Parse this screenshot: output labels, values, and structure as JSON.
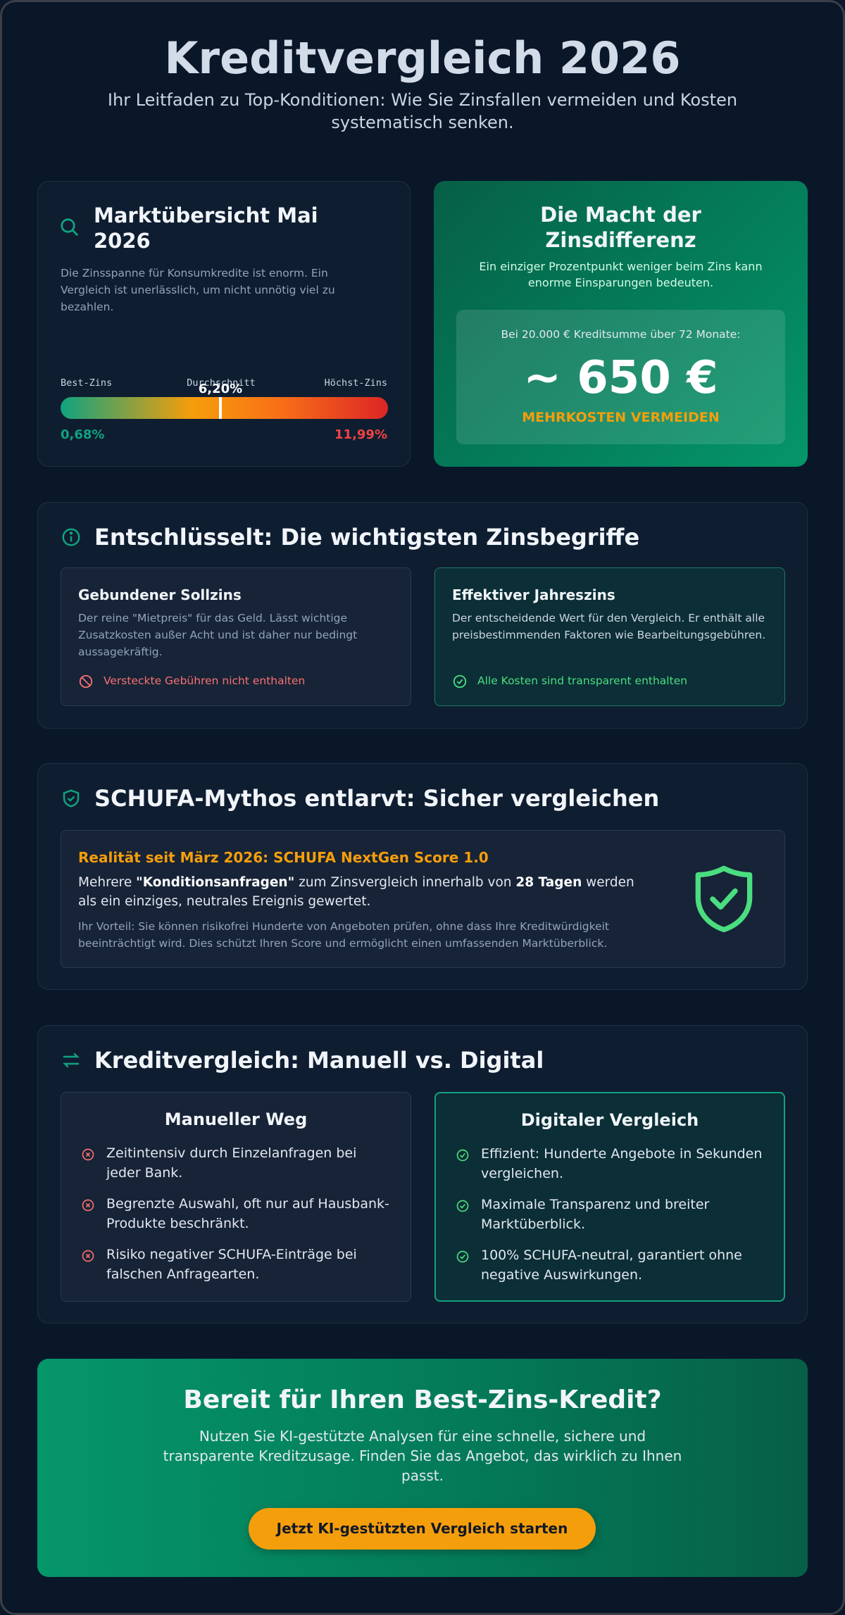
{
  "header": {
    "title": "Kreditvergleich 2026",
    "subtitle": "Ihr Leitfaden zu Top-Konditionen: Wie Sie Zinsfallen vermeiden und Kosten systematisch senken."
  },
  "market": {
    "title": "Marktübersicht Mai 2026",
    "text": "Die Zinsspanne für Konsumkredite ist enorm. Ein Vergleich ist unerlässlich, um nicht unnötig viel zu bezahlen.",
    "scale": {
      "min_label": "Best-Zins",
      "avg_label": "Durchschnitt",
      "max_label": "Höchst-Zins",
      "min": {
        "value": 0.68,
        "label": "0,68%"
      },
      "avg": {
        "value": 6.2,
        "label": "6,20%"
      },
      "max": {
        "value": 11.99,
        "label": "11,99%"
      }
    }
  },
  "difference": {
    "title": "Die Macht der Zinsdifferenz",
    "text": "Ein einziger Prozentpunkt weniger beim Zins kann enorme Einsparungen bedeuten.",
    "box_caption": "Bei 20.000 € Kreditsumme über 72 Monate:",
    "amount": "~ 650 €",
    "note": "MEHRKOSTEN VERMEIDEN"
  },
  "terms": {
    "title": "Entschlüsselt: Die wichtigsten Zinsbegriffe",
    "cards": [
      {
        "title": "Gebundener Sollzins",
        "text": "Der reine \"Mietpreis\" für das Geld. Lässt wichtige Zusatzkosten außer Acht und ist daher nur bedingt aussagekräftig.",
        "footer": "Versteckte Gebühren nicht enthalten"
      },
      {
        "title": "Effektiver Jahreszins",
        "text": "Der entscheidende Wert für den Vergleich. Er enthält alle preisbestimmenden Faktoren wie Bearbeitungsgebühren.",
        "footer": "Alle Kosten sind transparent enthalten"
      }
    ]
  },
  "schufa": {
    "title": "SCHUFA-Mythos entlarvt: Sicher vergleichen",
    "headline": "Realität seit März 2026: SCHUFA NextGen Score 1.0",
    "parts": [
      {
        "text": "Mehrere ",
        "bold": false
      },
      {
        "text": "\"Konditionsanfragen\"",
        "bold": true
      },
      {
        "text": " zum Zinsvergleich innerhalb von ",
        "bold": false
      },
      {
        "text": "28 Tagen",
        "bold": true
      },
      {
        "text": " werden als ein einziges, neutrales Ereignis gewertet.",
        "bold": false
      }
    ],
    "small": "Ihr Vorteil: Sie können risikofrei Hunderte von Angeboten prüfen, ohne dass Ihre Kreditwürdigkeit beeinträchtigt wird. Dies schützt Ihren Score und ermöglicht einen umfassenden Marktüberblick."
  },
  "compare": {
    "title": "Kreditvergleich: Manuell vs. Digital",
    "manual": {
      "title": "Manueller Weg",
      "items": [
        "Zeitintensiv durch Einzelanfragen bei jeder Bank.",
        "Begrenzte Auswahl, oft nur auf Hausbank-Produkte beschränkt.",
        "Risiko negativer SCHUFA-Einträge bei falschen Anfragearten."
      ]
    },
    "digital": {
      "title": "Digitaler Vergleich",
      "items": [
        "Effizient: Hunderte Angebote in Sekunden vergleichen.",
        "Maximale Transparenz und breiter Marktüberblick.",
        "100% SCHUFA-neutral, garantiert ohne negative Auswirkungen."
      ]
    }
  },
  "cta": {
    "title": "Bereit für Ihren Best-Zins-Kredit?",
    "text": "Nutzen Sie KI-gestützte Analysen für eine schnelle, sichere und transparente Kreditzusage. Finden Sie das Angebot, das wirklich zu Ihnen passt.",
    "button": "Jetzt KI-gestützten Vergleich starten"
  }
}
